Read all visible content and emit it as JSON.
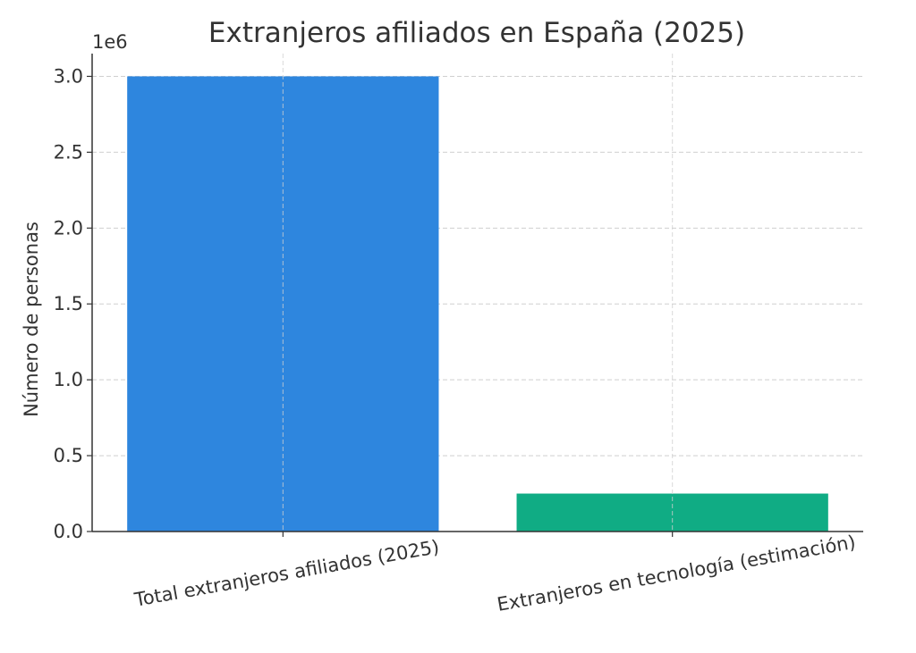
{
  "chart_data": {
    "type": "bar",
    "title": "Extranjeros afiliados en España (2025)",
    "ylabel": "Número de personas",
    "xlabel": "",
    "y_offset_label": "1e6",
    "categories": [
      "Total extranjeros afiliados (2025)",
      "Extranjeros en tecnología (estimación)"
    ],
    "values": [
      3000000,
      250000
    ],
    "colors": [
      "#2e86de",
      "#10ac84"
    ],
    "ylim": [
      0,
      3150000
    ],
    "yticks": [
      0,
      500000,
      1000000,
      1500000,
      2000000,
      2500000,
      3000000
    ],
    "ytick_labels": [
      "0.0",
      "0.5",
      "1.0",
      "1.5",
      "2.0",
      "2.5",
      "3.0"
    ],
    "grid": true,
    "grid_style": "dashed",
    "x_tick_rotation": -10
  }
}
